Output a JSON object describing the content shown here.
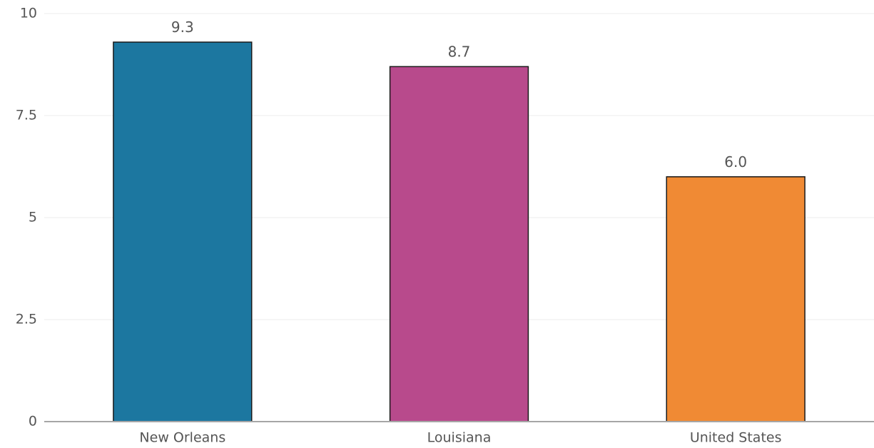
{
  "chart_data": {
    "type": "bar",
    "categories": [
      "New Orleans",
      "Louisiana",
      "United States"
    ],
    "values": [
      9.3,
      8.7,
      6.0
    ],
    "value_labels": [
      "9.3",
      "8.7",
      "6.0"
    ],
    "colors": [
      "#1c77a0",
      "#b84a8c",
      "#f08a34"
    ],
    "ylim": [
      0,
      10
    ],
    "yticks": [
      0,
      2.5,
      5,
      7.5,
      10
    ],
    "ytick_labels": [
      "0",
      "2.5",
      "5",
      "7.5",
      "10"
    ],
    "grid": true,
    "title": "",
    "xlabel": "",
    "ylabel": ""
  }
}
